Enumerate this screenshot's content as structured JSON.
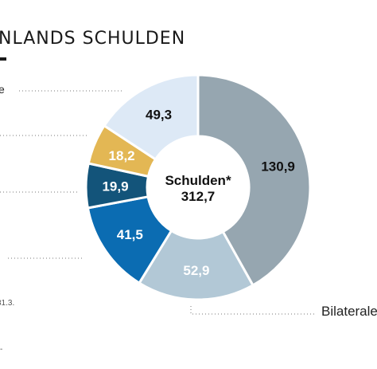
{
  "title": "NLANDS SCHULDEN",
  "left_cut_label": "e",
  "footnote": "31.3.",
  "footnote_mark": "-",
  "chart_data": {
    "type": "pie",
    "donut": true,
    "center_label": "Schulden*",
    "center_value": "312,7",
    "total": 312.7,
    "slices": [
      {
        "label_value": "130,9",
        "value": 130.9,
        "color": "#96a6b0",
        "text_color": "#111111"
      },
      {
        "label_value": "52,9",
        "value": 52.9,
        "color": "#b2c8d6",
        "text_color": "#ffffff"
      },
      {
        "label_value": "41,5",
        "value": 41.5,
        "color": "#0b6cb2",
        "text_color": "#ffffff"
      },
      {
        "label_value": "19,9",
        "value": 19.9,
        "color": "#13547a",
        "text_color": "#ffffff"
      },
      {
        "label_value": "18,2",
        "value": 18.2,
        "color": "#e3b754",
        "text_color": "#ffffff"
      },
      {
        "label_value": "49,3",
        "value": 49.3,
        "color": "#dde9f6",
        "text_color": "#111111"
      }
    ],
    "callout_labels": [
      "Bilaterale"
    ]
  }
}
